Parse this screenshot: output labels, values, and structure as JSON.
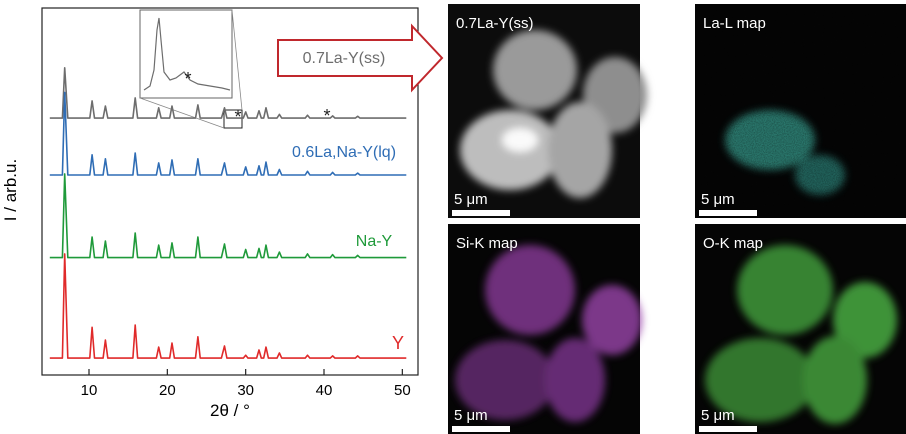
{
  "chart_data": {
    "type": "line",
    "xlabel": "2θ / °",
    "ylabel": "I / arb.u.",
    "xlim": [
      4,
      52
    ],
    "ylim": [
      0,
      100
    ],
    "xticks": [
      10,
      20,
      30,
      40,
      50
    ],
    "x": [
      5,
      6.6,
      6.9,
      7.3,
      10.1,
      10.4,
      10.7,
      11.8,
      12.1,
      12.4,
      15.6,
      15.9,
      16.2,
      18.6,
      18.9,
      19.2,
      20.3,
      20.6,
      20.9,
      23.6,
      23.9,
      24.2,
      26.9,
      27.3,
      27.6,
      29.7,
      30.0,
      30.3,
      31.4,
      31.7,
      32.0,
      32.3,
      32.6,
      32.9,
      34.0,
      34.3,
      34.6,
      37.6,
      37.9,
      38.2,
      40.8,
      41.1,
      41.4,
      44.0,
      44.3,
      44.6,
      50.5
    ],
    "series": [
      {
        "name": "0.7La-Y(ss)",
        "color": "#6d6d6d",
        "values": [
          70,
          70,
          83.7,
          70,
          70,
          74.7,
          70,
          70,
          73.3,
          70,
          70,
          75.5,
          70,
          70,
          72.8,
          70,
          70,
          73.3,
          70,
          70,
          73.6,
          70,
          70,
          72.8,
          70,
          70,
          71.7,
          70,
          70,
          72,
          70,
          70,
          72.8,
          70,
          70,
          71,
          70,
          70,
          70.8,
          70,
          70,
          70.6,
          70,
          70,
          70.5,
          70,
          70
        ]
      },
      {
        "name": "0.6La,Na-Y(lq)",
        "color": "#2f6db5",
        "values": [
          54.5,
          54.5,
          77,
          54.5,
          54.5,
          60,
          54.5,
          54.5,
          58.9,
          54.5,
          54.5,
          60.5,
          54.5,
          54.5,
          57.8,
          54.5,
          54.5,
          58.6,
          54.5,
          54.5,
          58.9,
          54.5,
          54.5,
          57.8,
          54.5,
          54.5,
          56.7,
          54.5,
          54.5,
          57,
          54.5,
          54.5,
          58,
          54.5,
          54.5,
          56,
          54.5,
          54.5,
          55.5,
          54.5,
          54.5,
          55.2,
          54.5,
          54.5,
          55,
          54.5,
          54.5
        ]
      },
      {
        "name": "Na-Y",
        "color": "#1f9a3a",
        "values": [
          32,
          32,
          54.8,
          32,
          32,
          37.6,
          32,
          32,
          36.5,
          32,
          32,
          38.7,
          32,
          32,
          35.4,
          32,
          32,
          36,
          32,
          32,
          37.6,
          32,
          32,
          35.7,
          32,
          32,
          34.2,
          32,
          32,
          34.5,
          32,
          32,
          35.4,
          32,
          32,
          33.5,
          32,
          32,
          33,
          32,
          32,
          32.8,
          32,
          32,
          32.6,
          32,
          32
        ]
      },
      {
        "name": "Y",
        "color": "#e02a2a",
        "values": [
          4.6,
          4.6,
          33,
          4.6,
          4.6,
          13,
          4.6,
          4.6,
          9.5,
          4.6,
          4.6,
          13.6,
          4.6,
          4.6,
          7.6,
          4.6,
          4.6,
          8.7,
          4.6,
          4.6,
          10.4,
          4.6,
          4.6,
          7.9,
          4.6,
          4.6,
          5.4,
          4.6,
          4.6,
          6.8,
          4.6,
          4.6,
          7.6,
          4.6,
          4.6,
          6,
          4.6,
          4.6,
          5.4,
          4.6,
          4.6,
          5.2,
          4.6,
          4.6,
          5.2,
          4.6,
          4.6
        ]
      }
    ],
    "annotations": [
      "*",
      "*",
      "*"
    ]
  },
  "images": [
    {
      "label": "0.7La-Y(ss)",
      "scale_bar": "5 μm"
    },
    {
      "label": "La-L map",
      "scale_bar": "5 μm"
    },
    {
      "label": "Si-K map",
      "scale_bar": "5 μm"
    },
    {
      "label": "O-K map",
      "scale_bar": "5 μm"
    }
  ]
}
